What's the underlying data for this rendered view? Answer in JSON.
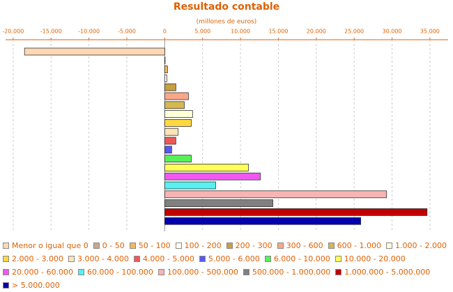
{
  "chart_data": {
    "type": "hbar",
    "title": "Resultado contable",
    "subtitle": "(millones de euros)",
    "categories": [
      "Menor o igual que 0",
      "0 - 50",
      "50 - 100",
      "100 - 200",
      "200 - 300",
      "300 - 600",
      "600 - 1.000",
      "1.000 - 2.000",
      "2.000 - 3.000",
      "3.000 - 4.000",
      "4.000 - 5.000",
      "5.000 - 6.000",
      "6.000 - 10.000",
      "10.000 - 20.000",
      "20.000 - 60.000",
      "60.000 - 100.000",
      "100.000 - 500.000",
      "500.000 - 1.000.000",
      "1.000.000 - 5.000.000",
      "> 5.000.000"
    ],
    "values": [
      -18500,
      50,
      370,
      280,
      1470,
      3130,
      2580,
      3680,
      3500,
      1750,
      1470,
      920,
      3500,
      11050,
      12620,
      6720,
      29280,
      14270,
      34620,
      25870
    ],
    "colors": [
      "#fcd8b4",
      "#c8a890",
      "#f4b860",
      "#fffff0",
      "#c8a040",
      "#f8a888",
      "#d4b850",
      "#ffffd8",
      "#ffd840",
      "#ffe4b8",
      "#f05858",
      "#5858f0",
      "#58f058",
      "#ffff58",
      "#f058f0",
      "#58f0f0",
      "#f8b4b4",
      "#808080",
      "#c00000",
      "#0000b0"
    ],
    "xlim": [
      -21000,
      37400
    ],
    "xticks": [
      {
        "value": -20000,
        "label": "-20.000"
      },
      {
        "value": -15000,
        "label": "-15.000"
      },
      {
        "value": -10000,
        "label": "-10.000"
      },
      {
        "value": -5000,
        "label": "-5.000"
      },
      0,
      {
        "value": 5000,
        "label": "5.000"
      },
      {
        "value": 10000,
        "label": "10.000"
      },
      {
        "value": 15000,
        "label": "15.000"
      },
      {
        "value": 20000,
        "label": "20.000"
      },
      {
        "value": 25000,
        "label": "25.000"
      },
      {
        "value": 30000,
        "label": "30.000"
      },
      {
        "value": 35000,
        "label": "35.000"
      }
    ],
    "grid": true
  }
}
